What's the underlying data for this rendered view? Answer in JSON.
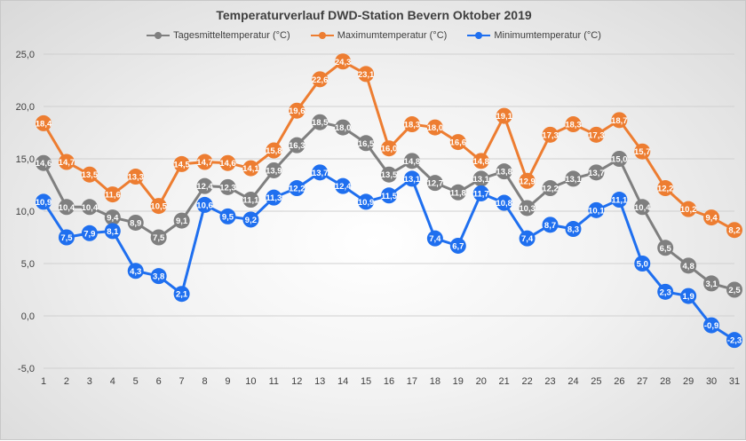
{
  "chart_data": {
    "type": "line",
    "title": "Temperaturverlauf DWD-Station Bevern Oktober 2019",
    "xlabel": "",
    "ylabel": "",
    "x": [
      1,
      2,
      3,
      4,
      5,
      6,
      7,
      8,
      9,
      10,
      11,
      12,
      13,
      14,
      15,
      16,
      17,
      18,
      19,
      20,
      21,
      22,
      23,
      24,
      25,
      26,
      27,
      28,
      29,
      30,
      31
    ],
    "ylim": [
      -5,
      25
    ],
    "y_ticks": [
      "-5,0",
      "0,0",
      "5,0",
      "10,0",
      "15,0",
      "20,0",
      "25,0"
    ],
    "legend_position": "top",
    "grid": true,
    "series": [
      {
        "name": "Tagesmitteltemperatur (°C)",
        "color": "#7f7f7f",
        "values": [
          14.6,
          10.4,
          10.4,
          9.4,
          8.9,
          7.5,
          9.1,
          12.4,
          12.3,
          11.1,
          13.9,
          16.3,
          18.5,
          18.0,
          16.5,
          13.5,
          14.8,
          12.7,
          11.8,
          13.1,
          13.8,
          10.3,
          12.2,
          13.1,
          13.7,
          15.0,
          10.4,
          6.5,
          4.8,
          3.1,
          2.5
        ],
        "labels": [
          "14,6",
          "10,4",
          "10,4",
          "9,4",
          "8,9",
          "7,5",
          "9,1",
          "12,4",
          "12,3",
          "11,1",
          "13,9",
          "16,3",
          "18,5",
          "18,0",
          "16,5",
          "13,5",
          "14,8",
          "12,7",
          "11,8",
          "13,1",
          "13,8",
          "10,3",
          "12,2",
          "13,1",
          "13,7",
          "15,0",
          "10,4",
          "6,5",
          "4,8",
          "3,1",
          "2,5"
        ]
      },
      {
        "name": "Maximumtemperatur (°C)",
        "color": "#ed7d31",
        "values": [
          18.4,
          14.7,
          13.5,
          11.6,
          13.3,
          10.5,
          14.5,
          14.7,
          14.6,
          14.1,
          15.8,
          19.6,
          22.6,
          24.3,
          23.1,
          16.0,
          18.3,
          18.0,
          16.6,
          14.8,
          19.1,
          12.9,
          17.3,
          18.3,
          17.3,
          18.7,
          15.7,
          12.2,
          10.2,
          9.4,
          8.2
        ],
        "labels": [
          "18,4",
          "14,7",
          "13,5",
          "11,6",
          "13,3",
          "10,5",
          "14,5",
          "14,7",
          "14,6",
          "14,1",
          "15,8",
          "19,6",
          "22,6",
          "24,3",
          "23,1",
          "16,0",
          "18,3",
          "18,0",
          "16,6",
          "14,8",
          "19,1",
          "12,9",
          "17,3",
          "18,3",
          "17,3",
          "18,7",
          "15,7",
          "12,2",
          "10,2",
          "9,4",
          "8,2"
        ]
      },
      {
        "name": "Minimumtemperatur (°C)",
        "color": "#1f6fef",
        "values": [
          10.9,
          7.5,
          7.9,
          8.1,
          4.3,
          3.8,
          2.1,
          10.6,
          9.5,
          9.2,
          11.3,
          12.2,
          13.7,
          12.4,
          10.9,
          11.5,
          13.1,
          7.4,
          6.7,
          11.7,
          10.8,
          7.4,
          8.7,
          8.3,
          10.1,
          11.1,
          5.0,
          2.3,
          1.9,
          -0.9,
          -2.3
        ],
        "labels": [
          "10,9",
          "7,5",
          "7,9",
          "8,1",
          "4,3",
          "3,8",
          "2,1",
          "10,6",
          "9,5",
          "9,2",
          "11,3",
          "12,2",
          "13,7",
          "12,4",
          "10,9",
          "11,5",
          "13,1",
          "7,4",
          "6,7",
          "11,7",
          "10,8",
          "7,4",
          "8,7",
          "8,3",
          "10,1",
          "11,1",
          "5,0",
          "2,3",
          "1,9",
          "-0,9",
          "-2,3"
        ]
      }
    ]
  }
}
